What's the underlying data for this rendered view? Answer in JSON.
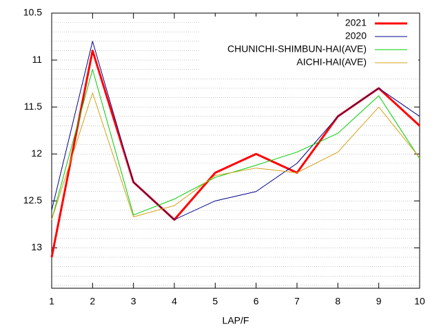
{
  "chart_data": {
    "type": "line",
    "xlabel": "LAP/F",
    "x": [
      1,
      2,
      3,
      4,
      5,
      6,
      7,
      8,
      9,
      10
    ],
    "xlim": [
      1,
      10
    ],
    "xticks": [
      1,
      2,
      3,
      4,
      5,
      6,
      7,
      8,
      9,
      10
    ],
    "ylim": [
      10.5,
      13.43
    ],
    "yticks": [
      10.5,
      11,
      11.5,
      12,
      12.5,
      13
    ],
    "y_reversed": true,
    "grid": true,
    "ygrid": [
      10.6,
      10.7,
      10.8,
      10.9,
      11,
      11.1,
      11.2,
      11.3,
      11.4,
      11.5,
      11.6,
      11.7,
      11.8,
      11.9,
      12,
      12.1,
      12.2,
      12.3,
      12.4,
      12.5,
      12.6,
      12.7,
      12.8,
      12.9,
      13,
      13.1,
      13.2,
      13.3,
      13.4
    ],
    "legend": "top-right",
    "series": [
      {
        "name": "2021",
        "color": "#ff0000",
        "line_width": 3,
        "values": [
          13.1,
          10.9,
          12.3,
          12.7,
          12.2,
          12.0,
          12.2,
          11.6,
          11.3,
          11.7
        ]
      },
      {
        "name": "2020",
        "color": "#00008b",
        "line_width": 1,
        "values": [
          12.6,
          10.8,
          12.3,
          12.7,
          12.5,
          12.4,
          12.1,
          11.6,
          11.3,
          11.6
        ]
      },
      {
        "name": "CHUNICHI-SHIMBUN-HAI(AVE)",
        "color": "#00cc00",
        "line_width": 1,
        "values": [
          12.7,
          11.1,
          12.65,
          12.48,
          12.25,
          12.12,
          11.98,
          11.78,
          11.38,
          12.05
        ]
      },
      {
        "name": "AICHI-HAI(AVE)",
        "color": "#d4a017",
        "line_width": 1,
        "values": [
          12.7,
          11.35,
          12.67,
          12.55,
          12.23,
          12.15,
          12.2,
          11.98,
          11.5,
          12.04
        ]
      }
    ]
  }
}
